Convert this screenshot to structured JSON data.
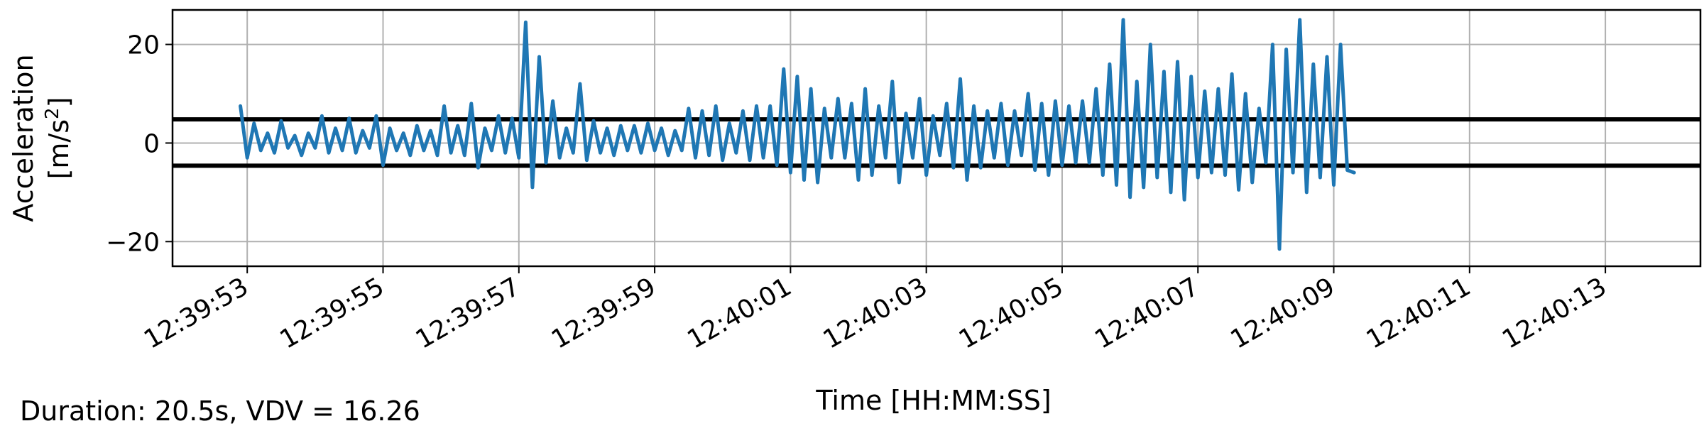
{
  "chart_data": {
    "type": "line",
    "title": "",
    "xlabel": "Time [HH:MM:SS]",
    "ylabel_line1": "Acceleration",
    "ylabel_line2_prefix": "[m/s",
    "ylabel_line2_sup": "2",
    "ylabel_line2_suffix": "]",
    "footer": "Duration: 20.5s, VDV = 16.26",
    "grid": true,
    "ylim": [
      -25,
      27
    ],
    "xlim_seconds_from_first_tick": [
      -1.1,
      21.4
    ],
    "x_ticks": [
      "12:39:53",
      "12:39:55",
      "12:39:57",
      "12:39:59",
      "12:40:01",
      "12:40:03",
      "12:40:05",
      "12:40:07",
      "12:40:09",
      "12:40:11",
      "12:40:13"
    ],
    "y_ticks": [
      20,
      0,
      -20
    ],
    "y_tick_labels": [
      "20",
      "0",
      "−20"
    ],
    "threshold_lines": [
      4.8,
      -4.6
    ],
    "series": [
      {
        "color": "#1f77b4",
        "start": "12:39:52.9",
        "step_seconds": 0.1,
        "values": [
          7.5,
          -3.0,
          4.0,
          -1.5,
          2.0,
          -2.0,
          4.5,
          -1.0,
          1.5,
          -2.5,
          2.0,
          -1.0,
          5.5,
          -2.0,
          3.0,
          -1.5,
          5.0,
          -2.0,
          2.5,
          -1.0,
          5.5,
          -4.5,
          3.0,
          -1.5,
          2.0,
          -2.5,
          3.5,
          -1.5,
          2.5,
          -2.5,
          7.5,
          -2.0,
          3.5,
          -2.5,
          8.0,
          -5.0,
          3.0,
          -1.5,
          5.5,
          -2.0,
          5.0,
          -3.0,
          24.5,
          -9.0,
          17.5,
          -4.0,
          8.5,
          -3.0,
          3.0,
          -2.0,
          12.0,
          -3.5,
          4.5,
          -2.0,
          3.0,
          -2.5,
          3.5,
          -1.5,
          3.5,
          -2.0,
          4.0,
          -1.5,
          3.0,
          -2.5,
          2.5,
          -1.5,
          7.0,
          -3.0,
          6.5,
          -2.5,
          7.5,
          -3.5,
          4.0,
          -2.0,
          6.5,
          -3.5,
          7.5,
          -3.0,
          7.5,
          -4.5,
          15.0,
          -6.0,
          13.5,
          -7.5,
          11.0,
          -8.0,
          7.0,
          -3.0,
          9.0,
          -3.0,
          8.0,
          -7.5,
          11.0,
          -6.5,
          7.5,
          -3.0,
          12.5,
          -8.0,
          6.0,
          -3.0,
          9.0,
          -6.5,
          5.5,
          -2.5,
          8.0,
          -5.0,
          13.0,
          -7.5,
          7.5,
          -5.0,
          6.5,
          -3.0,
          8.0,
          -4.5,
          6.5,
          -2.5,
          10.0,
          -5.5,
          8.0,
          -6.5,
          8.5,
          -4.5,
          7.5,
          -4.0,
          8.5,
          -4.0,
          11.0,
          -6.5,
          16.0,
          -8.5,
          25.0,
          -11.0,
          12.5,
          -9.0,
          20.0,
          -7.0,
          14.5,
          -10.0,
          16.5,
          -11.5,
          13.5,
          -7.0,
          10.5,
          -6.0,
          11.0,
          -6.5,
          14.0,
          -9.5,
          10.0,
          -8.0,
          7.0,
          -4.0,
          20.0,
          -21.5,
          19.0,
          -6.0,
          25.0,
          -10.0,
          16.0,
          -7.0,
          17.5,
          -8.5,
          20.0,
          -5.5,
          -6.0
        ]
      }
    ]
  }
}
